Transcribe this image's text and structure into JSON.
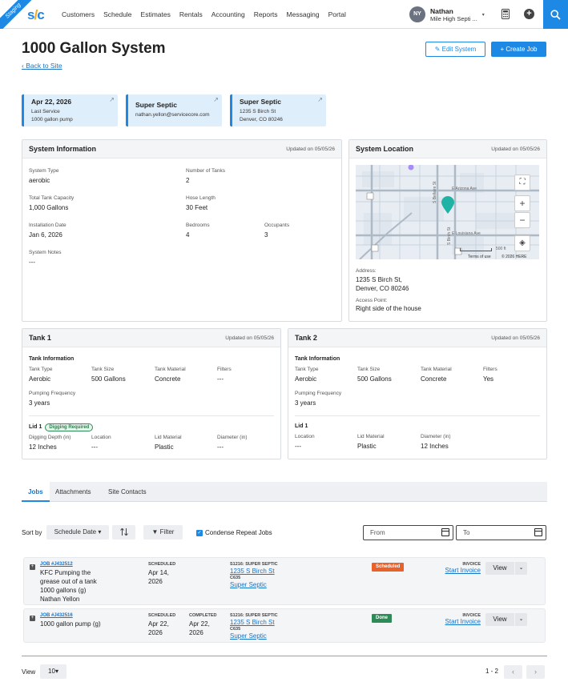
{
  "nav": {
    "env_ribbon": "Staging",
    "logo_a": "s",
    "logo_b": "/",
    "logo_c": "c",
    "menu": [
      "Customers",
      "Schedule",
      "Estimates",
      "Rentals",
      "Accounting",
      "Reports",
      "Messaging",
      "Portal"
    ],
    "user_initials": "NY",
    "user_name": "Nathan",
    "company": "Mile High Septi ...",
    "caret": "▾"
  },
  "header": {
    "title": "1000 Gallon System",
    "back_link": "Back to Site",
    "edit_label": "Edit System",
    "create_label": "Create Job"
  },
  "summary_cards": [
    {
      "title": "Apr 22, 2026",
      "line1": "Last Service",
      "line2": "1000 gallon pump"
    },
    {
      "title": "Super Septic",
      "line1": "nathan.yellon@servicecore.com",
      "line2": ""
    },
    {
      "title": "Super Septic",
      "line1": "1235 S Birch St",
      "line2": "Denver, CO 80246"
    }
  ],
  "system_info": {
    "heading": "System Information",
    "updated": "Updated on 05/05/26",
    "fields": {
      "system_type": {
        "label": "System Type",
        "value": "aerobic"
      },
      "num_tanks": {
        "label": "Number of Tanks",
        "value": "2"
      },
      "capacity": {
        "label": "Total Tank Capacity",
        "value": "1,000 Gallons"
      },
      "hose": {
        "label": "Hose Length",
        "value": "30 Feet"
      },
      "install": {
        "label": "Installation Date",
        "value": "Jan 6, 2026"
      },
      "bedrooms": {
        "label": "Bedrooms",
        "value": "4"
      },
      "occupants": {
        "label": "Occupants",
        "value": "3"
      },
      "notes": {
        "label": "System Notes",
        "value": "---"
      }
    }
  },
  "system_location": {
    "heading": "System Location",
    "updated": "Updated on 05/05/26",
    "address_label": "Address:",
    "address_line1": "1235 S Birch St,",
    "address_line2": "Denver, CO 80246",
    "access_label": "Access Point:",
    "access_value": "Right side of the house",
    "map": {
      "street1": "E Arizona Ave",
      "street2": "E Louisiana Ave",
      "street3": "S Birch St",
      "street4": "S Bellaire St",
      "scale": "500 ft",
      "terms": "Terms of use",
      "copyright": "© 2026 HERE"
    }
  },
  "tank1": {
    "heading": "Tank 1",
    "updated": "Updated on 05/05/26",
    "info_heading": "Tank Information",
    "type": {
      "label": "Tank Type",
      "value": "Aerobic"
    },
    "size": {
      "label": "Tank Size",
      "value": "500 Gallons"
    },
    "material": {
      "label": "Tank Material",
      "value": "Concrete"
    },
    "filters": {
      "label": "Filters",
      "value": "---"
    },
    "freq": {
      "label": "Pumping Frequency",
      "value": "3 years"
    },
    "lid_heading": "Lid 1",
    "lid_badge": "Digging Required",
    "depth": {
      "label": "Digging Depth (in)",
      "value": "12 Inches"
    },
    "location": {
      "label": "Location",
      "value": "---"
    },
    "lid_material": {
      "label": "Lid Material",
      "value": "Plastic"
    },
    "diameter": {
      "label": "Diameter (in)",
      "value": "---"
    }
  },
  "tank2": {
    "heading": "Tank 2",
    "updated": "Updated on 05/05/26",
    "info_heading": "Tank Information",
    "type": {
      "label": "Tank Type",
      "value": "Aerobic"
    },
    "size": {
      "label": "Tank Size",
      "value": "500 Gallons"
    },
    "material": {
      "label": "Tank Material",
      "value": "Concrete"
    },
    "filters": {
      "label": "Filters",
      "value": "Yes"
    },
    "freq": {
      "label": "Pumping Frequency",
      "value": "3 years"
    },
    "lid_heading": "Lid 1",
    "location": {
      "label": "Location",
      "value": "---"
    },
    "lid_material": {
      "label": "Lid Material",
      "value": "Plastic"
    },
    "diameter": {
      "label": "Diameter (in)",
      "value": "12 Inches"
    }
  },
  "tabs": [
    "Jobs",
    "Attachments",
    "Site Contacts"
  ],
  "toolbar": {
    "sort_label": "Sort by",
    "sort_value": "Schedule Date",
    "filter_label": "Filter",
    "condense_label": "Condense Repeat Jobs",
    "from_placeholder": "From",
    "to_placeholder": "To"
  },
  "jobs": [
    {
      "id": "JOB #J432512",
      "desc": [
        "KFC Pumping the",
        "grease out of a tank",
        "1000 gallons (g)",
        "Nathan Yellon"
      ],
      "scheduled_label": "SCHEDULED",
      "scheduled": [
        "Apr 14,",
        "2026"
      ],
      "completed_label": "",
      "completed": [],
      "customer_code": "S1216: SUPER SEPTIC",
      "address": "1235 S Birch St",
      "code2": "C635",
      "customer": "Super Septic",
      "status": "Scheduled",
      "status_color": "#e8622c",
      "invoice_label": "INVOICE",
      "invoice_link": "Start Invoice",
      "view": "View"
    },
    {
      "id": "JOB #J432516",
      "desc": [
        "1000 gallon pump (g)"
      ],
      "scheduled_label": "SCHEDULED",
      "scheduled": [
        "Apr 22,",
        "2026"
      ],
      "completed_label": "COMPLETED",
      "completed": [
        "Apr 22,",
        "2026"
      ],
      "customer_code": "S1216: SUPER SEPTIC",
      "address": "1235 S Birch St",
      "code2": "C635",
      "customer": "Super Septic",
      "status": "Done",
      "status_color": "#2e8b57",
      "invoice_label": "INVOICE",
      "invoice_link": "Start Invoice",
      "view": "View"
    }
  ],
  "footer": {
    "view_label": "View",
    "per_page": "10",
    "range": "1 - 2"
  }
}
